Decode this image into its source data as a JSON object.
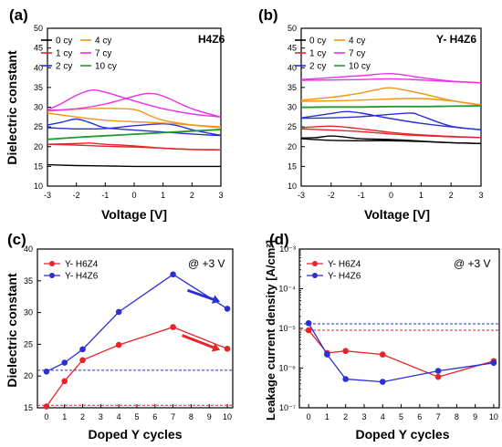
{
  "colors": {
    "axis": "#000000",
    "black": "#000000",
    "orange": "#f39419",
    "red": "#e8232a",
    "magenta": "#ee2ee9",
    "blue": "#2b2fd5",
    "green": "#239a2f"
  },
  "chart_data": [
    {
      "id": "a",
      "type": "line",
      "panel_label": "(a)",
      "tag": "H4Z6",
      "xlabel": "Voltage [V]",
      "ylabel": "Dielectric constant",
      "xlim": [
        -3,
        3
      ],
      "ylim": [
        10,
        50
      ],
      "xticks": [
        "-3",
        "-2",
        "-1",
        "0",
        "1",
        "2",
        "3"
      ],
      "yticks": [
        "10",
        "15",
        "20",
        "25",
        "30",
        "35",
        "40",
        "45",
        "50"
      ],
      "legend": {
        "placement": "top-left",
        "columns": 2,
        "entries": [
          {
            "label": "0 cy",
            "color": "black"
          },
          {
            "label": "4 cy",
            "color": "orange"
          },
          {
            "label": "1 cy",
            "color": "red"
          },
          {
            "label": "7 cy",
            "color": "magenta"
          },
          {
            "label": "2 cy",
            "color": "blue"
          },
          {
            "label": "10 cy",
            "color": "green"
          }
        ]
      },
      "series": [
        {
          "name": "0 cy",
          "color": "black",
          "loops": [
            {
              "x": [
                -3,
                -2,
                -1,
                0,
                1,
                2,
                3
              ],
              "y": [
                15.4,
                15.2,
                15.1,
                15.0,
                15.0,
                15.0,
                15.0
              ]
            }
          ]
        },
        {
          "name": "1 cy",
          "color": "red",
          "loops": [
            {
              "x": [
                -3,
                -2,
                -1,
                0,
                1,
                2,
                3
              ],
              "y": [
                20.6,
                20.4,
                20.1,
                19.9,
                19.6,
                19.3,
                19.2
              ]
            },
            {
              "x": [
                -3,
                -2,
                -1.5,
                -1,
                0,
                1,
                2,
                3
              ],
              "y": [
                20.6,
                20.8,
                20.9,
                20.6,
                20.2,
                19.6,
                19.3,
                19.2
              ]
            }
          ]
        },
        {
          "name": "2 cy",
          "color": "blue",
          "loops": [
            {
              "x": [
                -3,
                -2.5,
                -2,
                -1.5,
                -1,
                0,
                1,
                2,
                3
              ],
              "y": [
                25.5,
                26.2,
                27.0,
                26.0,
                24.8,
                24.2,
                23.7,
                23.2,
                22.8
              ]
            },
            {
              "x": [
                -3,
                -2,
                -1,
                0,
                1,
                1.5,
                2,
                2.5,
                3
              ],
              "y": [
                24.8,
                24.5,
                24.6,
                25.3,
                25.8,
                25.3,
                24.3,
                23.5,
                22.9
              ]
            }
          ]
        },
        {
          "name": "4 cy",
          "color": "orange",
          "loops": [
            {
              "x": [
                -3,
                -2,
                -1,
                0,
                0.5,
                1,
                2,
                3
              ],
              "y": [
                29.0,
                29.5,
                29.7,
                29.4,
                28.0,
                26.7,
                25.5,
                24.8
              ]
            },
            {
              "x": [
                -3,
                -2,
                -1,
                0,
                1,
                2,
                3
              ],
              "y": [
                28.5,
                27.5,
                26.7,
                26.3,
                26.0,
                25.5,
                25.0
              ]
            }
          ]
        },
        {
          "name": "7 cy",
          "color": "magenta",
          "loops": [
            {
              "x": [
                -3,
                -2.5,
                -2,
                -1.5,
                -1,
                0,
                1,
                2,
                3
              ],
              "y": [
                29.3,
                31.0,
                33.0,
                34.3,
                33.8,
                31.6,
                29.6,
                28.3,
                27.5
              ]
            },
            {
              "x": [
                -3,
                -2,
                -1,
                0,
                0.5,
                1,
                2,
                3
              ],
              "y": [
                29.2,
                29.6,
                30.8,
                32.8,
                33.5,
                32.8,
                29.6,
                27.5
              ]
            }
          ]
        },
        {
          "name": "10 cy",
          "color": "green",
          "loops": [
            {
              "x": [
                -3,
                -2,
                -1,
                0,
                1,
                2,
                3
              ],
              "y": [
                21.8,
                22.3,
                22.7,
                23.1,
                23.5,
                23.9,
                24.3
              ]
            },
            {
              "x": [
                -3,
                -2,
                -1,
                0,
                1,
                2,
                3
              ],
              "y": [
                21.9,
                22.4,
                22.8,
                23.2,
                23.6,
                24.0,
                24.4
              ]
            }
          ]
        }
      ]
    },
    {
      "id": "b",
      "type": "line",
      "panel_label": "(b)",
      "tag": "Y- H4Z6",
      "xlabel": "Voltage [V]",
      "ylabel": "",
      "xlim": [
        -3,
        3
      ],
      "ylim": [
        10,
        50
      ],
      "xticks": [
        "-3",
        "-2",
        "-1",
        "0",
        "1",
        "2",
        "3"
      ],
      "yticks": [
        "10",
        "15",
        "20",
        "25",
        "30",
        "35",
        "40",
        "45",
        "50"
      ],
      "legend": {
        "placement": "top-left",
        "columns": 2,
        "entries": [
          {
            "label": "0 cy",
            "color": "black"
          },
          {
            "label": "4 cy",
            "color": "orange"
          },
          {
            "label": "1 cy",
            "color": "red"
          },
          {
            "label": "7 cy",
            "color": "magenta"
          },
          {
            "label": "2 cy",
            "color": "blue"
          },
          {
            "label": "10 cy",
            "color": "green"
          }
        ]
      },
      "series": [
        {
          "name": "0 cy",
          "color": "black",
          "loops": [
            {
              "x": [
                -3,
                -2.5,
                -2,
                -1.5,
                -1,
                0,
                1,
                2,
                3
              ],
              "y": [
                22.2,
                22.3,
                22.7,
                22.4,
                22.0,
                21.8,
                21.4,
                21.0,
                20.8
              ]
            },
            {
              "x": [
                -3,
                -2,
                -1,
                0,
                1,
                2,
                3
              ],
              "y": [
                22.0,
                21.6,
                21.5,
                21.5,
                21.3,
                21.0,
                20.8
              ]
            }
          ]
        },
        {
          "name": "1 cy",
          "color": "red",
          "loops": [
            {
              "x": [
                -3,
                -2,
                -1,
                0,
                1,
                2,
                3
              ],
              "y": [
                24.8,
                25.2,
                24.5,
                23.6,
                23.0,
                22.6,
                22.3
              ]
            },
            {
              "x": [
                -3,
                -2,
                -1,
                0,
                1,
                2,
                3
              ],
              "y": [
                24.5,
                24.2,
                23.8,
                23.2,
                22.8,
                22.5,
                22.3
              ]
            }
          ]
        },
        {
          "name": "2 cy",
          "color": "blue",
          "loops": [
            {
              "x": [
                -3,
                -2,
                -1.5,
                -1,
                0,
                1,
                2,
                3
              ],
              "y": [
                27.3,
                28.4,
                28.9,
                28.5,
                27.1,
                25.9,
                25.0,
                24.3
              ]
            },
            {
              "x": [
                -3,
                -2,
                -1,
                0,
                0.7,
                1,
                2,
                3
              ],
              "y": [
                27.2,
                27.3,
                27.6,
                28.2,
                28.5,
                27.8,
                25.2,
                24.3
              ]
            }
          ]
        },
        {
          "name": "4 cy",
          "color": "orange",
          "loops": [
            {
              "x": [
                -3,
                -2,
                -1,
                -0.5,
                0,
                1,
                2,
                3
              ],
              "y": [
                31.8,
                32.5,
                33.6,
                34.4,
                34.9,
                33.5,
                31.7,
                30.5
              ]
            },
            {
              "x": [
                -3,
                -2,
                -1,
                0,
                1,
                2,
                3
              ],
              "y": [
                31.5,
                31.6,
                31.8,
                32.1,
                32.2,
                31.6,
                30.6
              ]
            }
          ]
        },
        {
          "name": "7 cy",
          "color": "magenta",
          "loops": [
            {
              "x": [
                -3,
                -2,
                -1,
                0,
                1,
                2,
                3
              ],
              "y": [
                37.0,
                37.5,
                38.0,
                38.5,
                37.5,
                36.6,
                36.2
              ]
            },
            {
              "x": [
                -3,
                -2,
                -1,
                0,
                1,
                2,
                3
              ],
              "y": [
                36.8,
                36.9,
                37.0,
                37.2,
                36.9,
                36.5,
                36.2
              ]
            }
          ]
        },
        {
          "name": "10 cy",
          "color": "green",
          "loops": [
            {
              "x": [
                -3,
                -2,
                -1,
                0,
                1,
                2,
                3
              ],
              "y": [
                30.0,
                30.1,
                30.1,
                30.2,
                30.2,
                30.3,
                30.4
              ]
            },
            {
              "x": [
                -3,
                -2,
                -1,
                0,
                1,
                2,
                3
              ],
              "y": [
                29.9,
                30.0,
                30.0,
                30.1,
                30.1,
                30.2,
                30.3
              ]
            }
          ]
        }
      ]
    },
    {
      "id": "c",
      "type": "line",
      "panel_label": "(c)",
      "annotation": "@ +3 V",
      "xlabel": "Doped Y cycles",
      "ylabel": "Dielectric constant",
      "xlim": [
        -0.5,
        10.3
      ],
      "ylim": [
        15,
        40
      ],
      "xticks": [
        "0",
        "1",
        "2",
        "3",
        "4",
        "5",
        "6",
        "7",
        "8",
        "9",
        "10"
      ],
      "yticks": [
        "15",
        "20",
        "25",
        "30",
        "35",
        "40"
      ],
      "legend": {
        "placement": "top-left",
        "columns": 1,
        "entries": [
          {
            "label": "Y- H6Z4",
            "color": "red"
          },
          {
            "label": "Y- H4Z6",
            "color": "blue"
          }
        ]
      },
      "series": [
        {
          "name": "Y- H6Z4",
          "color": "red",
          "x": [
            0,
            1,
            2,
            4,
            7,
            10
          ],
          "y": [
            15.2,
            19.2,
            22.5,
            24.9,
            27.7,
            24.3
          ],
          "baseline": 15.4
        },
        {
          "name": "Y- H4Z6",
          "color": "blue",
          "x": [
            0,
            1,
            2,
            4,
            7,
            10
          ],
          "y": [
            20.7,
            22.1,
            24.2,
            30.1,
            36.0,
            30.6
          ],
          "baseline": 20.9
        }
      ],
      "trend_arrows": [
        {
          "color": "blue",
          "from": [
            7.8,
            33.5
          ],
          "to": [
            9.6,
            31.7
          ]
        },
        {
          "color": "red",
          "from": [
            7.5,
            26.4
          ],
          "to": [
            9.6,
            24.1
          ]
        }
      ]
    },
    {
      "id": "d",
      "type": "line",
      "panel_label": "(d)",
      "annotation": "@ +3 V",
      "xlabel": "Doped Y cycles",
      "ylabel": "Leakage current density [A/cm²]",
      "xlim": [
        -0.5,
        10.3
      ],
      "ylim": [
        1e-07,
        0.001
      ],
      "yscale": "log",
      "xticks": [
        "0",
        "1",
        "2",
        "3",
        "4",
        "5",
        "6",
        "7",
        "8",
        "9",
        "10"
      ],
      "yticks": [
        "10⁻⁷",
        "10⁻⁶",
        "10⁻⁵",
        "10⁻⁴",
        "10⁻³"
      ],
      "legend": {
        "placement": "top-left",
        "columns": 1,
        "entries": [
          {
            "label": "Y- H6Z4",
            "color": "red"
          },
          {
            "label": "Y- H4Z6",
            "color": "blue"
          }
        ]
      },
      "series": [
        {
          "name": "Y- H6Z4",
          "color": "red",
          "x": [
            0,
            1,
            2,
            4,
            7,
            10
          ],
          "y": [
            9e-06,
            2.4e-06,
            2.7e-06,
            2.2e-06,
            6e-07,
            1.5e-06
          ],
          "baseline": 9e-06
        },
        {
          "name": "Y- H4Z6",
          "color": "blue",
          "x": [
            0,
            1,
            2,
            4,
            7,
            10
          ],
          "y": [
            1.35e-05,
            2.2e-06,
            5.3e-07,
            4.5e-07,
            8.5e-07,
            1.35e-06
          ],
          "baseline": 1.3e-05
        }
      ]
    }
  ]
}
